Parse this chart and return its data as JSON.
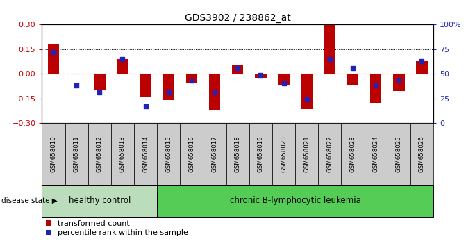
{
  "title": "GDS3902 / 238862_at",
  "samples": [
    "GSM658010",
    "GSM658011",
    "GSM658012",
    "GSM658013",
    "GSM658014",
    "GSM658015",
    "GSM658016",
    "GSM658017",
    "GSM658018",
    "GSM658019",
    "GSM658020",
    "GSM658021",
    "GSM658022",
    "GSM658023",
    "GSM658024",
    "GSM658025",
    "GSM658026"
  ],
  "red_values": [
    0.18,
    -0.005,
    -0.1,
    0.09,
    -0.145,
    -0.16,
    -0.06,
    -0.225,
    0.055,
    -0.025,
    -0.065,
    -0.215,
    0.3,
    -0.065,
    -0.175,
    -0.105,
    0.075
  ],
  "blue_percentiles": [
    72,
    38,
    31,
    65,
    17,
    31,
    43,
    31,
    56,
    49,
    40,
    24,
    65,
    56,
    38,
    44,
    63
  ],
  "healthy_count": 5,
  "healthy_label": "healthy control",
  "leukemia_label": "chronic B-lymphocytic leukemia",
  "disease_state_label": "disease state",
  "arrow": "▶",
  "legend_red": "transformed count",
  "legend_blue": "percentile rank within the sample",
  "red_color": "#bb0000",
  "blue_color": "#2222bb",
  "ylim_left": [
    -0.3,
    0.3
  ],
  "ylim_right": [
    0,
    100
  ],
  "yticks_left": [
    -0.3,
    -0.15,
    0.0,
    0.15,
    0.3
  ],
  "yticks_right": [
    0,
    25,
    50,
    75,
    100
  ],
  "healthy_bg": "#bbddbb",
  "leukemia_bg": "#55cc55",
  "xtick_bg": "#cccccc",
  "bg_color": "#ffffff"
}
